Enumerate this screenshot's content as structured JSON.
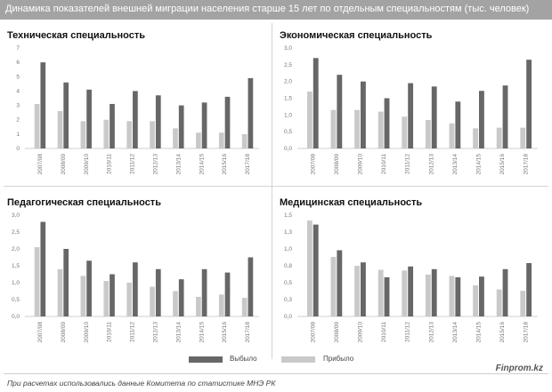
{
  "header": {
    "title": "Динамика показателей внешней миграции населения старше 15 лет по отдельным специальностям (тыс. человек)"
  },
  "legend": {
    "emigration": "Выбыло",
    "immigration": "Прибыло"
  },
  "footer": {
    "note": "При расчетах использовались данные Комитета по статистике МНЭ РК",
    "brand": "Finprom.kz"
  },
  "colors": {
    "emigration": "#676767",
    "immigration": "#c9c9c9",
    "header_bg": "#a3a3a3"
  },
  "chart_data": [
    {
      "type": "bar",
      "title": "Техническая специальность",
      "categories": [
        "2007/08",
        "2008/09",
        "2009/10",
        "2010/11",
        "2011/12",
        "2012/13",
        "2013/14",
        "2014/15",
        "2015/16",
        "2017/18"
      ],
      "ytick_labels": [
        "0",
        "1",
        "2",
        "3",
        "4",
        "5",
        "6",
        "7"
      ],
      "ylim": [
        0,
        7
      ],
      "grid": false,
      "series": [
        {
          "name": "Прибыло",
          "values": [
            3.1,
            2.6,
            1.9,
            2.0,
            1.9,
            1.9,
            1.4,
            1.1,
            1.1,
            1.0
          ]
        },
        {
          "name": "Выбыло",
          "values": [
            6.0,
            4.6,
            4.1,
            3.1,
            4.0,
            3.7,
            3.0,
            3.2,
            3.6,
            4.9
          ]
        }
      ]
    },
    {
      "type": "bar",
      "title": "Экономическая специальность",
      "categories": [
        "2007/08",
        "2008/09",
        "2009/10",
        "2010/11",
        "2011/12",
        "2012/13",
        "2013/14",
        "2014/15",
        "2015/16",
        "2017/18"
      ],
      "ytick_labels": [
        "0,0",
        "0,5",
        "1,0",
        "1,5",
        "2,0",
        "2,5",
        "3,0"
      ],
      "ylim": [
        0,
        3
      ],
      "grid": false,
      "series": [
        {
          "name": "Прибыло",
          "values": [
            1.7,
            1.15,
            1.15,
            1.1,
            0.95,
            0.85,
            0.75,
            0.6,
            0.62,
            0.62
          ]
        },
        {
          "name": "Выбыло",
          "values": [
            2.7,
            2.2,
            2.0,
            1.5,
            1.95,
            1.85,
            1.4,
            1.72,
            1.88,
            2.65
          ]
        }
      ]
    },
    {
      "type": "bar",
      "title": "Педагогическая специальность",
      "categories": [
        "2007/08",
        "2008/09",
        "2009/10",
        "2010/11",
        "2011/12",
        "2012/13",
        "2013/14",
        "2014/15",
        "2015/16",
        "2017/18"
      ],
      "ytick_labels": [
        "0,0",
        "0,5",
        "1,0",
        "1,5",
        "2,0",
        "2,5",
        "3,0"
      ],
      "ylim": [
        0,
        3
      ],
      "grid": false,
      "series": [
        {
          "name": "Прибыло",
          "values": [
            2.05,
            1.4,
            1.2,
            1.05,
            1.0,
            0.88,
            0.75,
            0.58,
            0.65,
            0.55
          ]
        },
        {
          "name": "Выбыло",
          "values": [
            2.8,
            2.0,
            1.65,
            1.25,
            1.6,
            1.4,
            1.1,
            1.4,
            1.3,
            1.75
          ]
        }
      ]
    },
    {
      "type": "bar",
      "title": "Медицинская специальность",
      "categories": [
        "2007/08",
        "2008/09",
        "2009/10",
        "2010/11",
        "2011/12",
        "2012/13",
        "2013/14",
        "2014/15",
        "2015/16",
        "2017/18"
      ],
      "ytick_labels": [
        "0,0",
        "0,3",
        "0,5",
        "0,8",
        "1,0",
        "1,3",
        "1,5"
      ],
      "ylim": [
        0,
        1.5
      ],
      "grid": false,
      "series": [
        {
          "name": "Прибыло",
          "values": [
            1.42,
            0.88,
            0.75,
            0.69,
            0.68,
            0.62,
            0.6,
            0.46,
            0.4,
            0.38
          ]
        },
        {
          "name": "Выбыло",
          "values": [
            1.36,
            0.98,
            0.8,
            0.58,
            0.74,
            0.7,
            0.58,
            0.59,
            0.7,
            0.79
          ]
        }
      ]
    }
  ]
}
